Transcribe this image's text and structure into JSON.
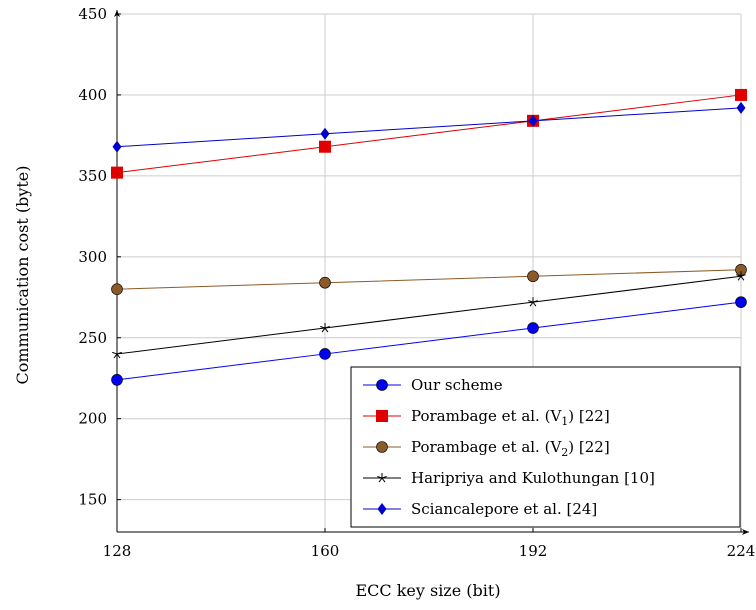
{
  "chart_data": {
    "type": "line",
    "xlabel": "ECC key size (bit)",
    "ylabel": "Communication cost (byte)",
    "x": [
      128,
      160,
      192,
      224
    ],
    "xlim": [
      128,
      224
    ],
    "ylim": [
      130,
      450
    ],
    "x_ticks": [
      "128",
      "160",
      "192",
      "224"
    ],
    "y_ticks": [
      150,
      200,
      250,
      300,
      350,
      400,
      450
    ],
    "grid": true,
    "legend_position": "bottom-right",
    "series": [
      {
        "name": "Our scheme",
        "label_main": "Our scheme",
        "label_sub": "",
        "label_tail": "",
        "values": [
          224,
          240,
          256,
          272
        ],
        "color": "#0000ee",
        "marker": "circle"
      },
      {
        "name": "Porambage et al. (V1) [22]",
        "label_main": "Porambage et al. (V",
        "label_sub": "1",
        "label_tail": ") [22]",
        "values": [
          352,
          368,
          384,
          400
        ],
        "color": "#e00000",
        "marker": "square"
      },
      {
        "name": "Porambage et al. (V2) [22]",
        "label_main": "Porambage et al. (V",
        "label_sub": "2",
        "label_tail": ") [22]",
        "values": [
          280,
          284,
          288,
          292
        ],
        "color": "#8b5a2b",
        "marker": "circle"
      },
      {
        "name": "Haripriya and Kulothungan [10]",
        "label_main": "Haripriya and Kulothungan [10]",
        "label_sub": "",
        "label_tail": "",
        "values": [
          240,
          256,
          272,
          288
        ],
        "color": "#000000",
        "marker": "star"
      },
      {
        "name": "Sciancalepore et al. [24]",
        "label_main": "Sciancalepore et al. [24]",
        "label_sub": "",
        "label_tail": "",
        "values": [
          368,
          376,
          384,
          392
        ],
        "color": "#0000cc",
        "marker": "diamond"
      }
    ]
  }
}
